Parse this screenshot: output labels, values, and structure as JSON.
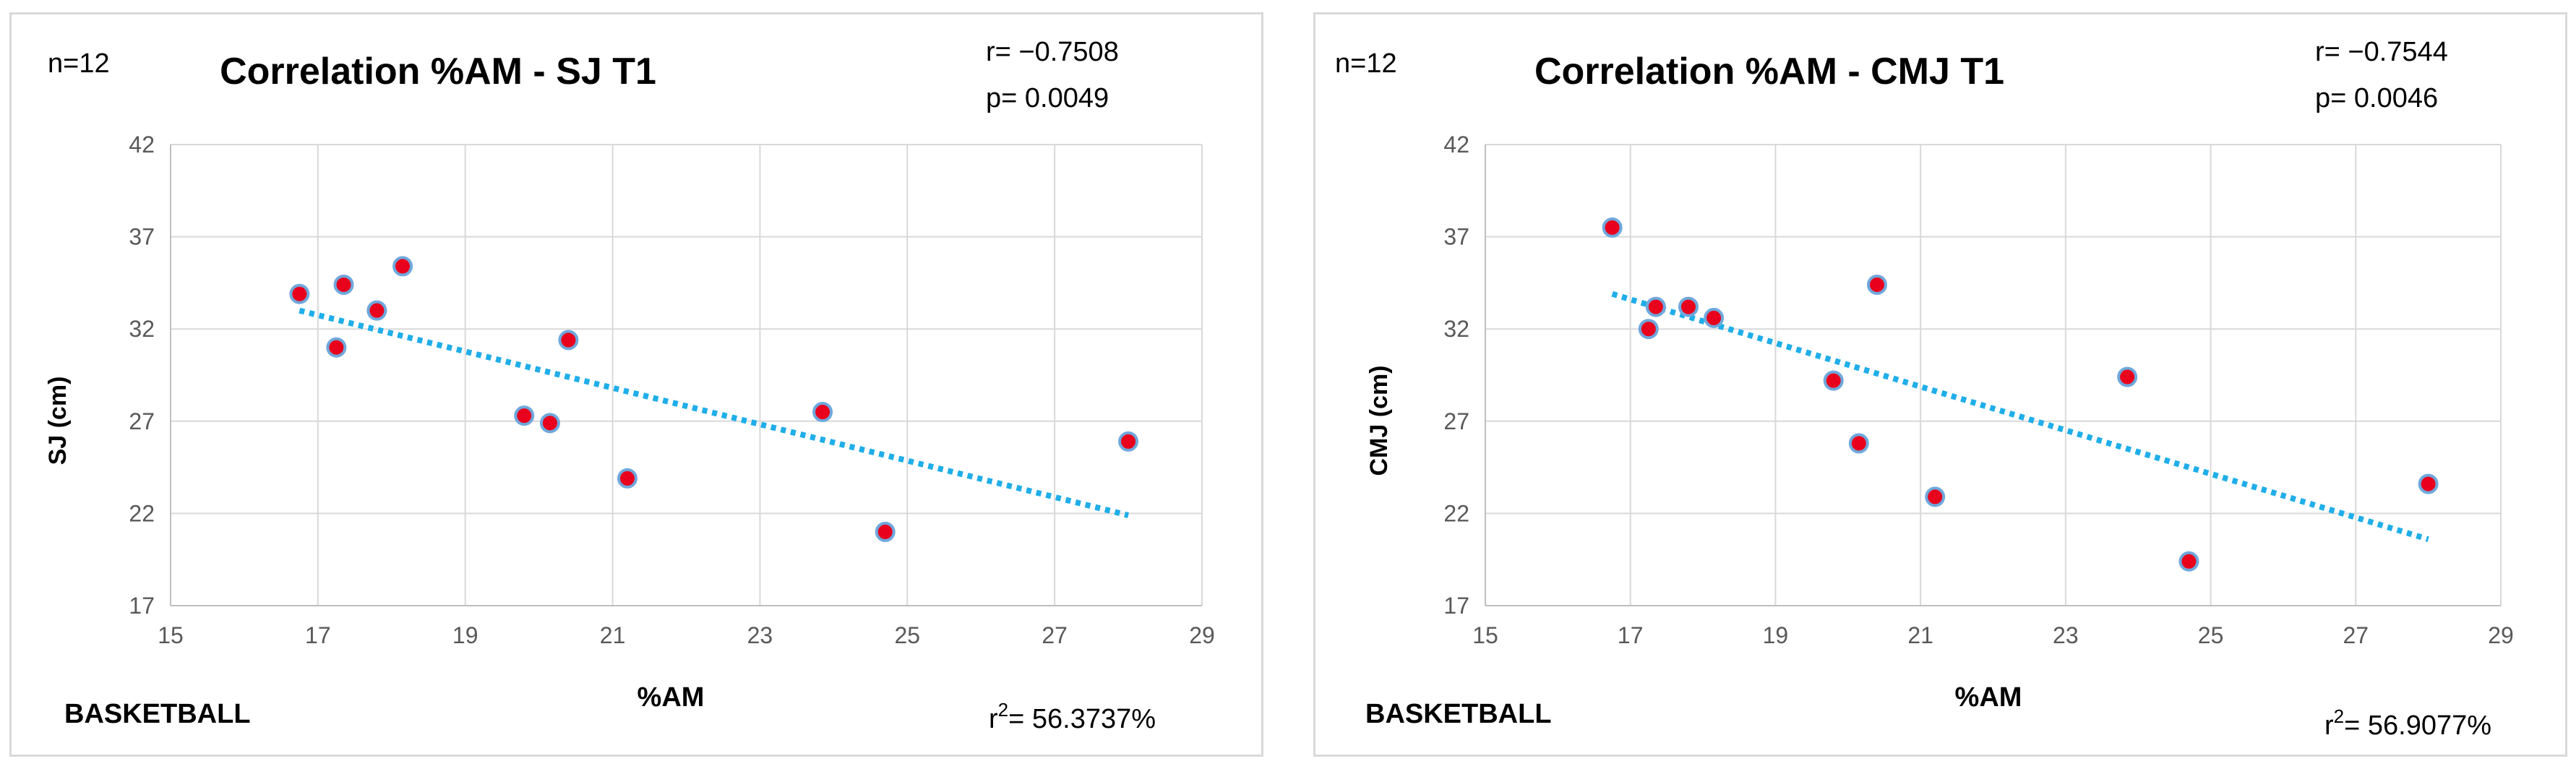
{
  "chart_data": [
    {
      "type": "scatter",
      "title": "Correlation %AM - SJ T1",
      "sample_size": "n=12",
      "r_text": "r= −0.7508",
      "p_text": "p= 0.0049",
      "r2_prefix": "r",
      "r2_sup": "2",
      "r2_value": "= 56.3737%",
      "group": "BASKETBALL",
      "xlabel": "%AM",
      "ylabel": "SJ (cm)",
      "xlim": [
        15,
        29
      ],
      "ylim": [
        17,
        42
      ],
      "xticks": [
        15,
        17,
        19,
        21,
        23,
        25,
        27,
        29
      ],
      "yticks": [
        17,
        22,
        27,
        32,
        37,
        42
      ],
      "x": [
        16.75,
        17.25,
        17.35,
        17.8,
        18.15,
        19.8,
        20.15,
        20.4,
        21.2,
        23.85,
        24.7,
        28.0
      ],
      "y": [
        33.9,
        31.0,
        34.4,
        33.0,
        35.4,
        27.3,
        26.9,
        31.4,
        23.9,
        27.5,
        21.0,
        25.9
      ],
      "trendline": {
        "x": [
          16.75,
          28.0
        ],
        "y": [
          33.0,
          21.9
        ]
      },
      "colors": {
        "point_fill": "#e8001c",
        "point_edge": "#6fa8dc",
        "trend": "#1faee9",
        "grid": "#d9d9d9"
      }
    },
    {
      "type": "scatter",
      "title": "Correlation %AM - CMJ T1",
      "sample_size": "n=12",
      "r_text": "r= −0.7544",
      "p_text": "p= 0.0046",
      "r2_prefix": "r",
      "r2_sup": "2",
      "r2_value": "= 56.9077%",
      "group": "BASKETBALL",
      "xlabel": "%AM",
      "ylabel": "CMJ (cm)",
      "xlim": [
        15,
        29
      ],
      "ylim": [
        17,
        42
      ],
      "xticks": [
        15,
        17,
        19,
        21,
        23,
        25,
        27,
        29
      ],
      "yticks": [
        17,
        22,
        27,
        32,
        37,
        42
      ],
      "x": [
        16.75,
        17.25,
        17.35,
        17.8,
        18.15,
        19.8,
        20.15,
        20.4,
        21.2,
        23.85,
        24.7,
        28.0
      ],
      "y": [
        37.5,
        32.0,
        33.2,
        33.2,
        32.6,
        29.2,
        25.8,
        34.4,
        22.9,
        29.4,
        19.4,
        23.6
      ],
      "trendline": {
        "x": [
          16.75,
          28.0
        ],
        "y": [
          33.9,
          20.6
        ]
      },
      "colors": {
        "point_fill": "#e8001c",
        "point_edge": "#6fa8dc",
        "trend": "#1faee9",
        "grid": "#d9d9d9"
      }
    }
  ]
}
